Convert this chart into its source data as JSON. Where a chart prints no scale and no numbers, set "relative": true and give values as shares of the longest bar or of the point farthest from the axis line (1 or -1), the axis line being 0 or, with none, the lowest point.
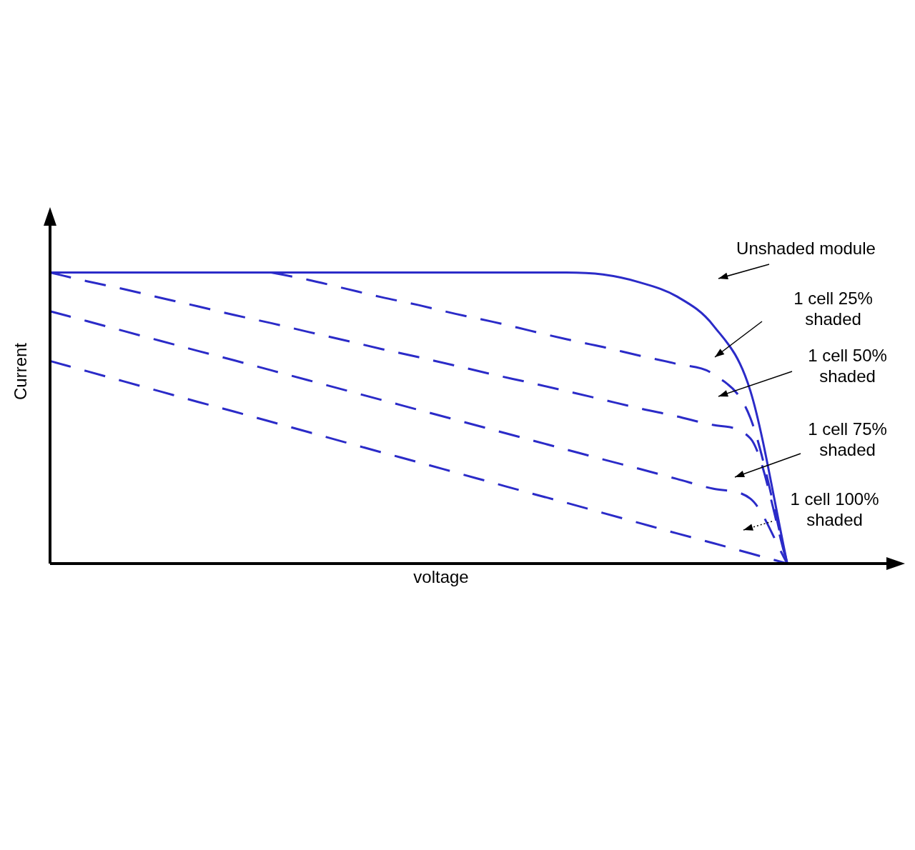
{
  "chart_data": {
    "type": "line",
    "xlabel": "voltage",
    "ylabel": "Current",
    "relative": true,
    "legend": false,
    "marker": "none",
    "categories": [
      null,
      null,
      null,
      null,
      null,
      null,
      null,
      null,
      null,
      null,
      null,
      null,
      null,
      null,
      null,
      null,
      null,
      null,
      null,
      null,
      null,
      null,
      null,
      null
    ],
    "annotations": [
      "Unshaded module",
      "1 cell 25% shaded",
      "1 cell 50% shaded",
      "1 cell 75% shaded",
      "1 cell 100% shaded"
    ],
    "series": [
      {
        "color": "#2b2bc8",
        "line_style": "solid",
        "values": [
          1,
          1,
          1,
          1,
          1,
          1,
          1,
          1,
          1,
          1,
          1,
          1,
          1,
          1,
          1,
          0.993,
          0.966,
          0.918,
          0.817,
          0.593,
          0,
          null,
          null,
          null
        ]
      },
      {
        "color": "#2b2bc8",
        "line_style": "dashed",
        "values": [
          null,
          null,
          null,
          null,
          null,
          null,
          1,
          0.975,
          0.945,
          0.915,
          0.888,
          0.858,
          0.831,
          0.801,
          0.771,
          0.744,
          0.714,
          0.686,
          0.65,
          0.5,
          0,
          null,
          null,
          null
        ]
      },
      {
        "color": "#2b2bc8",
        "line_style": "dashed",
        "values": [
          1,
          0.97,
          0.943,
          0.913,
          0.884,
          0.854,
          0.826,
          0.796,
          0.767,
          0.737,
          0.709,
          0.68,
          0.65,
          0.622,
          0.593,
          0.563,
          0.533,
          0.506,
          0.476,
          0.43,
          0,
          null,
          null,
          null
        ]
      },
      {
        "color": "#2b2bc8",
        "line_style": "dashed",
        "values": [
          0.867,
          0.833,
          0.799,
          0.765,
          0.731,
          0.698,
          0.664,
          0.63,
          0.596,
          0.562,
          0.528,
          0.494,
          0.46,
          0.426,
          0.392,
          0.358,
          0.325,
          0.291,
          0.257,
          0.223,
          0,
          null,
          null,
          null
        ]
      },
      {
        "color": "#2b2bc8",
        "line_style": "dashed",
        "values": [
          0.696,
          0.661,
          0.626,
          0.591,
          0.556,
          0.522,
          0.487,
          0.452,
          0.417,
          0.382,
          0.348,
          0.313,
          0.278,
          0.243,
          0.209,
          0.174,
          0.139,
          0.104,
          0.07,
          0.035,
          0,
          null,
          null,
          null
        ]
      }
    ]
  }
}
